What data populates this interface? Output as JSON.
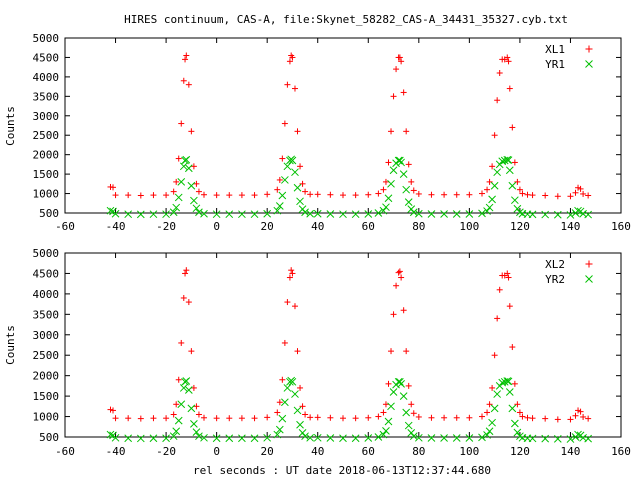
{
  "title": "HIRES continuum, CAS-A, file:Skynet_58282_CAS-A_34431_35327.cyb.txt",
  "xlabel": "rel seconds : UT date 2018-06-13T12:37:44.680",
  "colors": {
    "red": "#ff0000",
    "green": "#00c000",
    "axes": "#000000"
  },
  "chart_data": [
    {
      "type": "scatter",
      "ylabel": "Counts",
      "xlim": [
        -60,
        160
      ],
      "ylim": [
        500,
        5000
      ],
      "xticks": [
        -60,
        -40,
        -20,
        0,
        20,
        40,
        60,
        80,
        100,
        120,
        140,
        160
      ],
      "yticks": [
        500,
        1000,
        1500,
        2000,
        2500,
        3000,
        3500,
        4000,
        4500,
        5000
      ],
      "legend_position": "top-right",
      "series": [
        {
          "name": "XL1",
          "marker": "plus",
          "color": "#ff0000",
          "x": [
            -42,
            -41,
            -40,
            -35,
            -30,
            -25,
            -20,
            -17,
            -16,
            -15,
            -14,
            -13,
            -12.5,
            -12,
            -11,
            -10,
            -9,
            -8,
            -7,
            -5,
            0,
            5,
            10,
            15,
            20,
            24,
            25,
            26,
            27,
            28,
            29,
            29.5,
            30,
            31,
            32,
            33,
            34,
            35,
            37,
            40,
            45,
            50,
            55,
            60,
            64,
            66,
            67,
            68,
            69,
            70,
            71,
            72,
            72.5,
            73,
            74,
            75,
            76,
            77,
            78,
            80,
            85,
            90,
            95,
            100,
            105,
            107,
            108,
            109,
            110,
            111,
            112,
            113,
            114,
            115,
            115.5,
            116,
            117,
            118,
            119,
            120,
            121,
            123,
            125,
            130,
            135,
            140,
            142,
            143,
            144,
            145,
            147
          ],
          "y": [
            1170,
            1160,
            960,
            960,
            950,
            960,
            960,
            1050,
            1300,
            1900,
            2800,
            3900,
            4450,
            4550,
            3800,
            2600,
            1700,
            1250,
            1050,
            970,
            960,
            960,
            960,
            960,
            980,
            1100,
            1350,
            1900,
            2800,
            3800,
            4400,
            4550,
            4500,
            3700,
            2600,
            1700,
            1250,
            1050,
            980,
            980,
            970,
            960,
            960,
            970,
            1000,
            1100,
            1300,
            1800,
            2600,
            3500,
            4200,
            4500,
            4500,
            4400,
            3600,
            2600,
            1750,
            1300,
            1080,
            990,
            970,
            970,
            970,
            970,
            1000,
            1100,
            1300,
            1700,
            2500,
            3400,
            4100,
            4450,
            4450,
            4500,
            4400,
            3700,
            2700,
            1800,
            1300,
            1100,
            1000,
            970,
            960,
            950,
            930,
            930,
            1020,
            1150,
            1120,
            990,
            950
          ]
        },
        {
          "name": "YR1",
          "marker": "x",
          "color": "#00c000",
          "x": [
            -42,
            -41,
            -40,
            -35,
            -30,
            -25,
            -20,
            -17,
            -16,
            -15,
            -14,
            -13,
            -12.5,
            -12,
            -11,
            -10,
            -9,
            -8,
            -7,
            -5,
            0,
            5,
            10,
            15,
            20,
            24,
            25,
            26,
            27,
            28,
            29,
            29.5,
            30,
            31,
            32,
            33,
            34,
            35,
            37,
            40,
            45,
            50,
            55,
            60,
            64,
            66,
            67,
            68,
            69,
            70,
            71,
            72,
            72.5,
            73,
            74,
            75,
            76,
            77,
            78,
            80,
            85,
            90,
            95,
            100,
            105,
            107,
            108,
            109,
            110,
            111,
            112,
            113,
            114,
            115,
            115.5,
            116,
            117,
            118,
            119,
            120,
            121,
            123,
            125,
            130,
            135,
            140,
            142,
            143,
            144,
            145,
            147
          ],
          "y": [
            560,
            540,
            480,
            470,
            465,
            470,
            470,
            520,
            640,
            900,
            1300,
            1700,
            1850,
            1870,
            1650,
            1200,
            820,
            620,
            520,
            480,
            470,
            470,
            470,
            470,
            480,
            560,
            680,
            950,
            1350,
            1700,
            1850,
            1880,
            1850,
            1550,
            1150,
            800,
            600,
            520,
            480,
            480,
            475,
            470,
            470,
            475,
            500,
            560,
            650,
            880,
            1250,
            1600,
            1780,
            1850,
            1850,
            1800,
            1500,
            1100,
            780,
            600,
            520,
            480,
            475,
            475,
            475,
            475,
            490,
            550,
            640,
            850,
            1200,
            1550,
            1750,
            1830,
            1850,
            1870,
            1860,
            1600,
            1200,
            830,
            610,
            520,
            480,
            470,
            465,
            460,
            455,
            450,
            500,
            560,
            540,
            480,
            460
          ]
        }
      ]
    },
    {
      "type": "scatter",
      "ylabel": "Counts",
      "xlim": [
        -60,
        160
      ],
      "ylim": [
        500,
        5000
      ],
      "xticks": [
        -60,
        -40,
        -20,
        0,
        20,
        40,
        60,
        80,
        100,
        120,
        140,
        160
      ],
      "yticks": [
        500,
        1000,
        1500,
        2000,
        2500,
        3000,
        3500,
        4000,
        4500,
        5000
      ],
      "legend_position": "top-right",
      "series": [
        {
          "name": "XL2",
          "marker": "plus",
          "color": "#ff0000",
          "x": [
            -42,
            -41,
            -40,
            -35,
            -30,
            -25,
            -20,
            -17,
            -16,
            -15,
            -14,
            -13,
            -12.5,
            -12,
            -11,
            -10,
            -9,
            -8,
            -7,
            -5,
            0,
            5,
            10,
            15,
            20,
            24,
            25,
            26,
            27,
            28,
            29,
            29.5,
            30,
            31,
            32,
            33,
            34,
            35,
            37,
            40,
            45,
            50,
            55,
            60,
            64,
            66,
            67,
            68,
            69,
            70,
            71,
            72,
            72.5,
            73,
            74,
            75,
            76,
            77,
            78,
            80,
            85,
            90,
            95,
            100,
            105,
            107,
            108,
            109,
            110,
            111,
            112,
            113,
            114,
            115,
            115.5,
            116,
            117,
            118,
            119,
            120,
            121,
            123,
            125,
            130,
            135,
            140,
            142,
            143,
            144,
            145,
            147
          ],
          "y": [
            1170,
            1150,
            960,
            960,
            950,
            960,
            960,
            1050,
            1300,
            1900,
            2800,
            3900,
            4500,
            4580,
            3800,
            2600,
            1700,
            1250,
            1050,
            970,
            960,
            960,
            960,
            960,
            980,
            1100,
            1350,
            1900,
            2800,
            3800,
            4400,
            4580,
            4500,
            3700,
            2600,
            1700,
            1250,
            1050,
            980,
            980,
            970,
            960,
            960,
            970,
            1000,
            1100,
            1300,
            1800,
            2600,
            3500,
            4200,
            4520,
            4550,
            4400,
            3600,
            2600,
            1750,
            1300,
            1080,
            990,
            970,
            970,
            970,
            970,
            1000,
            1100,
            1300,
            1700,
            2500,
            3400,
            4100,
            4450,
            4450,
            4500,
            4400,
            3700,
            2700,
            1800,
            1300,
            1100,
            1000,
            970,
            960,
            950,
            930,
            930,
            1020,
            1150,
            1120,
            990,
            950
          ]
        },
        {
          "name": "YR2",
          "marker": "x",
          "color": "#00c000",
          "x": [
            -42,
            -41,
            -40,
            -35,
            -30,
            -25,
            -20,
            -17,
            -16,
            -15,
            -14,
            -13,
            -12.5,
            -12,
            -11,
            -10,
            -9,
            -8,
            -7,
            -5,
            0,
            5,
            10,
            15,
            20,
            24,
            25,
            26,
            27,
            28,
            29,
            29.5,
            30,
            31,
            32,
            33,
            34,
            35,
            37,
            40,
            45,
            50,
            55,
            60,
            64,
            66,
            67,
            68,
            69,
            70,
            71,
            72,
            72.5,
            73,
            74,
            75,
            76,
            77,
            78,
            80,
            85,
            90,
            95,
            100,
            105,
            107,
            108,
            109,
            110,
            111,
            112,
            113,
            114,
            115,
            115.5,
            116,
            117,
            118,
            119,
            120,
            121,
            123,
            125,
            130,
            135,
            140,
            142,
            143,
            144,
            145,
            147
          ],
          "y": [
            560,
            540,
            480,
            470,
            465,
            470,
            470,
            520,
            640,
            900,
            1300,
            1700,
            1850,
            1870,
            1650,
            1200,
            820,
            620,
            520,
            480,
            470,
            470,
            470,
            470,
            480,
            560,
            680,
            950,
            1350,
            1700,
            1850,
            1880,
            1850,
            1550,
            1150,
            800,
            600,
            520,
            480,
            480,
            475,
            470,
            470,
            475,
            500,
            560,
            650,
            880,
            1250,
            1600,
            1780,
            1850,
            1850,
            1800,
            1500,
            1100,
            780,
            600,
            520,
            480,
            475,
            475,
            475,
            475,
            490,
            550,
            640,
            850,
            1200,
            1550,
            1750,
            1830,
            1850,
            1870,
            1860,
            1600,
            1200,
            830,
            610,
            520,
            480,
            470,
            465,
            460,
            455,
            450,
            500,
            560,
            540,
            480,
            460
          ]
        }
      ]
    }
  ]
}
